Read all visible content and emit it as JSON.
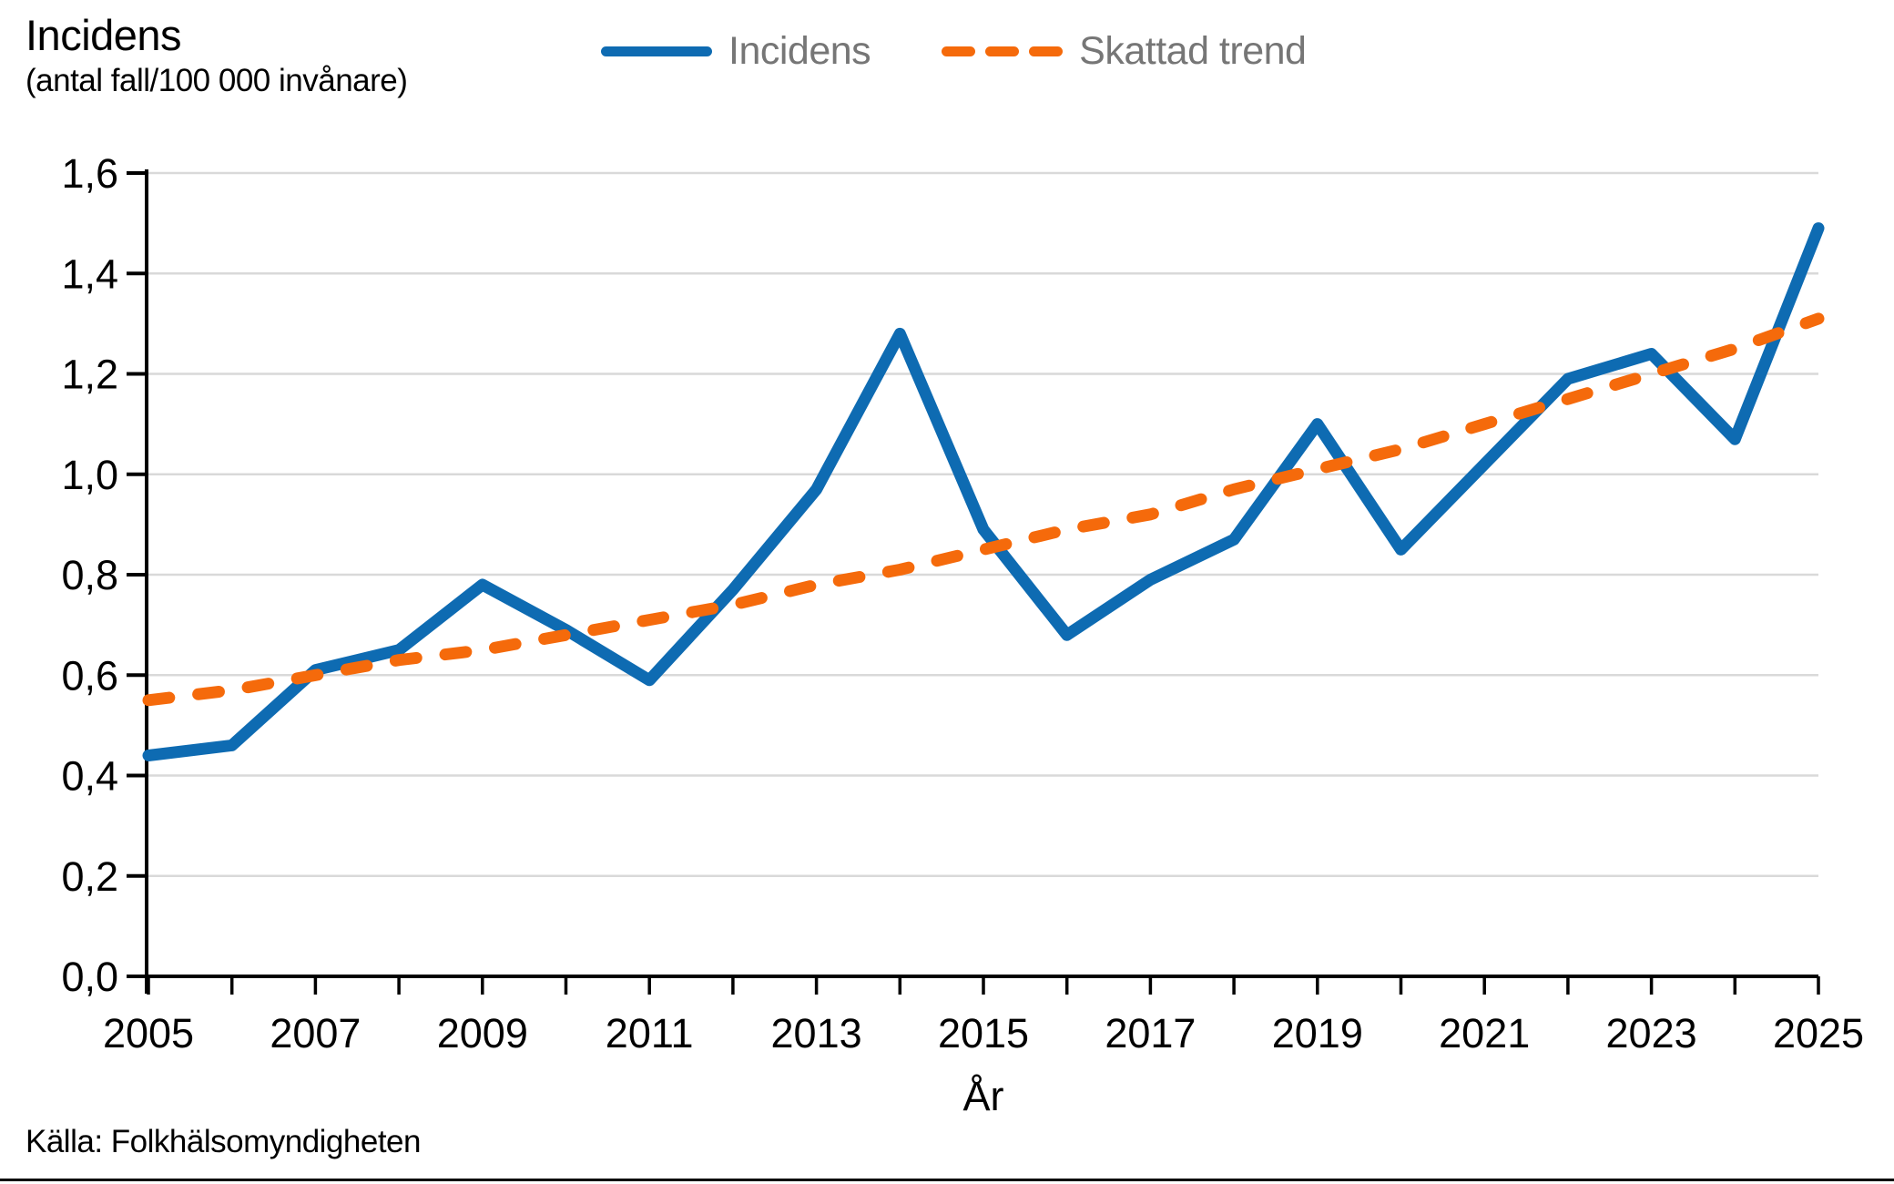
{
  "header": {
    "title": "Incidens",
    "subtitle": "(antal fall/100 000 invånare)"
  },
  "legend": [
    {
      "label": "Incidens",
      "style": "solid"
    },
    {
      "label": "Skattad trend",
      "style": "dashed"
    }
  ],
  "axes": {
    "x_title": "År"
  },
  "footer": {
    "source": "Källa: Folkhälsomyndigheten"
  },
  "colors": {
    "incidens_line": "#0E6BB2",
    "trend_line": "#F56A0B",
    "gridline": "#D9D9D9",
    "axis": "#000000",
    "legend_text": "#767676"
  },
  "chart_data": {
    "type": "line",
    "title": "Incidens (antal fall/100 000 invånare)",
    "xlabel": "År",
    "ylabel": "Incidens (antal fall/100 000 invånare)",
    "x": [
      2005,
      2006,
      2007,
      2008,
      2009,
      2010,
      2011,
      2012,
      2013,
      2014,
      2015,
      2016,
      2017,
      2018,
      2019,
      2020,
      2021,
      2022,
      2023,
      2024,
      2025
    ],
    "series": [
      {
        "name": "Incidens",
        "style": "solid",
        "values": [
          0.44,
          0.46,
          0.61,
          0.65,
          0.78,
          0.69,
          0.59,
          0.77,
          0.97,
          1.28,
          0.89,
          0.68,
          0.79,
          0.87,
          1.1,
          0.85,
          1.02,
          1.19,
          1.24,
          1.07,
          1.49
        ]
      },
      {
        "name": "Skattad trend",
        "style": "dashed",
        "values": [
          0.55,
          0.57,
          0.6,
          0.63,
          0.65,
          0.68,
          0.71,
          0.74,
          0.78,
          0.81,
          0.85,
          0.89,
          0.92,
          0.97,
          1.01,
          1.05,
          1.1,
          1.15,
          1.2,
          1.25,
          1.31
        ]
      }
    ],
    "ylim": [
      0,
      1.6
    ],
    "y_ticks": [
      0,
      0.2,
      0.4,
      0.6,
      0.8,
      1.0,
      1.2,
      1.4,
      1.6
    ],
    "y_tick_labels": [
      "0,0",
      "0,2",
      "0,4",
      "0,6",
      "0,8",
      "1,0",
      "1,2",
      "1,4",
      "1,6"
    ],
    "x_labeled_ticks": [
      2005,
      2007,
      2009,
      2011,
      2013,
      2015,
      2017,
      2019,
      2021,
      2023,
      2025
    ],
    "x_tick_labels": [
      "2005",
      "2007",
      "2009",
      "2011",
      "2013",
      "2015",
      "2017",
      "2019",
      "2021",
      "2023",
      "2025"
    ],
    "grid": true,
    "legend_position": "top-center"
  }
}
